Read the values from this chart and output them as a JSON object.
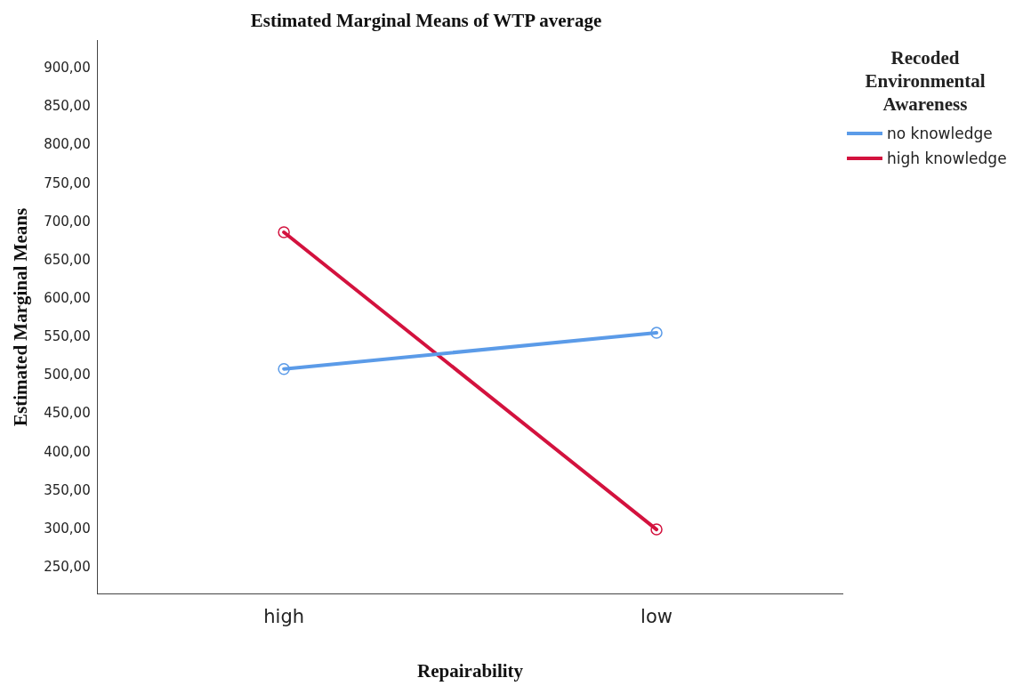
{
  "chart_data": {
    "type": "line",
    "title": "Estimated Marginal Means of WTP average",
    "xlabel": "Repairability",
    "ylabel": "Estimated Marginal Means",
    "legend_title": "Recoded Environmental Awareness",
    "categories": [
      "high",
      "low"
    ],
    "series": [
      {
        "name": "no knowledge",
        "color": "#5b9be8",
        "values": [
          509,
          556
        ]
      },
      {
        "name": "high knowledge",
        "color": "#d3123e",
        "values": [
          687,
          300
        ]
      }
    ],
    "ylim": [
      216,
      937
    ],
    "yticks": [
      {
        "value": 250,
        "label": "250,00"
      },
      {
        "value": 300,
        "label": "300,00"
      },
      {
        "value": 350,
        "label": "350,00"
      },
      {
        "value": 400,
        "label": "400,00"
      },
      {
        "value": 450,
        "label": "450,00"
      },
      {
        "value": 500,
        "label": "500,00"
      },
      {
        "value": 550,
        "label": "550,00"
      },
      {
        "value": 600,
        "label": "600,00"
      },
      {
        "value": 650,
        "label": "650,00"
      },
      {
        "value": 700,
        "label": "700,00"
      },
      {
        "value": 750,
        "label": "750,00"
      },
      {
        "value": 800,
        "label": "800,00"
      },
      {
        "value": 850,
        "label": "850,00"
      },
      {
        "value": 900,
        "label": "900,00"
      }
    ],
    "grid": false,
    "legend": "top right",
    "marker": "circle",
    "line_style": "solid"
  }
}
